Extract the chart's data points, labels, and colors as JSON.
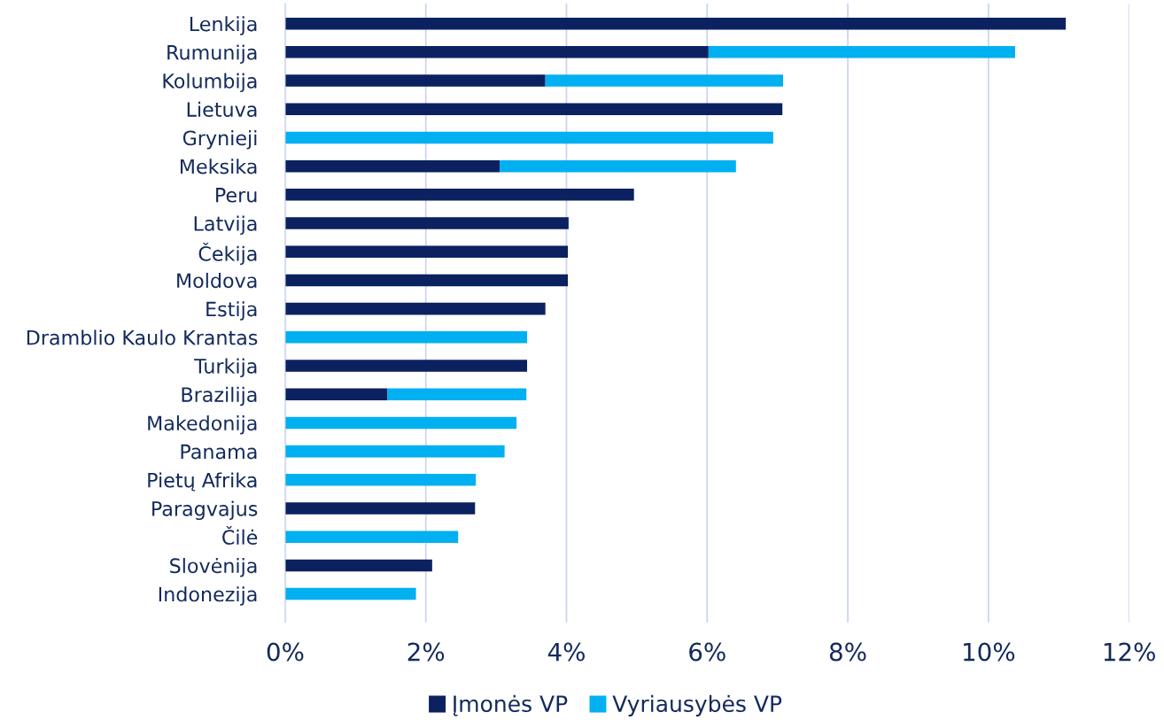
{
  "chart_data": {
    "type": "bar",
    "orientation": "horizontal",
    "stacked": true,
    "categories": [
      "Lenkija",
      "Rumunija",
      "Kolumbija",
      "Lietuva",
      "Grynieji",
      "Meksika",
      "Peru",
      "Latvija",
      "Čekija",
      "Moldova",
      "Estija",
      "Dramblio Kaulo Krantas",
      "Turkija",
      "Brazilija",
      "Makedonija",
      "Panama",
      "Pietų Afrika",
      "Paragvajus",
      "Čilė",
      "Slovėnija",
      "Indonezija"
    ],
    "series": [
      {
        "name": "Įmonės VP",
        "color": "#0b2160",
        "values": [
          11.1,
          6.02,
          3.7,
          7.07,
          null,
          3.05,
          4.96,
          4.03,
          4.02,
          4.02,
          3.7,
          null,
          3.44,
          1.45,
          null,
          null,
          null,
          2.7,
          null,
          2.09,
          null
        ]
      },
      {
        "name": "Vyriausybės VP",
        "color": "#00b0f0",
        "values": [
          null,
          4.36,
          3.38,
          null,
          6.94,
          3.36,
          null,
          null,
          null,
          null,
          null,
          3.44,
          null,
          1.98,
          3.29,
          3.12,
          2.71,
          null,
          2.46,
          null,
          1.86
        ]
      }
    ],
    "xlim": [
      0,
      12
    ],
    "xticks": [
      {
        "value": 0,
        "label": "0%"
      },
      {
        "value": 2,
        "label": "2%"
      },
      {
        "value": 4,
        "label": "4%"
      },
      {
        "value": 6,
        "label": "6%"
      },
      {
        "value": 8,
        "label": "8%"
      },
      {
        "value": 10,
        "label": "10%"
      },
      {
        "value": 12,
        "label": "12%"
      }
    ],
    "grid": "x",
    "legend": "bottom"
  }
}
